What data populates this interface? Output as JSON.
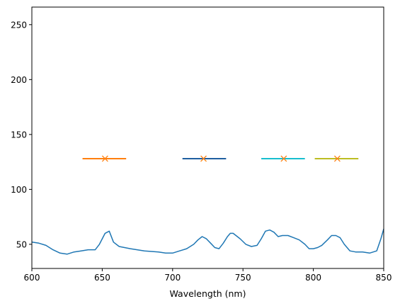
{
  "chart_data": {
    "type": "line",
    "title": "",
    "xlabel": "Wavelength (nm)",
    "ylabel": "",
    "xlim": [
      600,
      850
    ],
    "ylim": [
      28,
      266
    ],
    "grid": false,
    "legend": "none",
    "x_ticks": [
      600,
      650,
      700,
      750,
      800,
      850
    ],
    "y_ticks": [
      50,
      100,
      150,
      200,
      250
    ],
    "spectrum": {
      "color": "#1f77b4",
      "x": [
        600,
        605,
        610,
        615,
        620,
        625,
        630,
        635,
        640,
        645,
        648,
        652,
        655,
        658,
        662,
        670,
        680,
        690,
        695,
        700,
        705,
        710,
        715,
        718,
        721,
        724,
        727,
        730,
        733,
        736,
        739,
        741,
        743,
        745,
        748,
        752,
        756,
        760,
        763,
        766,
        769,
        772,
        775,
        778,
        782,
        786,
        790,
        794,
        797,
        800,
        803,
        806,
        810,
        813,
        816,
        819,
        822,
        826,
        830,
        835,
        840,
        845,
        848,
        850
      ],
      "y": [
        52,
        51,
        49,
        45,
        42,
        41,
        43,
        44,
        45,
        45,
        50,
        60,
        62,
        52,
        48,
        46,
        44,
        43,
        42,
        42,
        44,
        46,
        50,
        54,
        57,
        55,
        51,
        47,
        46,
        51,
        57,
        60,
        60,
        58,
        55,
        50,
        48,
        49,
        55,
        62,
        63,
        61,
        57,
        58,
        58,
        56,
        54,
        50,
        46,
        46,
        47,
        49,
        54,
        58,
        58,
        56,
        50,
        44,
        43,
        43,
        42,
        44,
        55,
        64
      ]
    },
    "markers": [
      {
        "x": 652,
        "y": 128,
        "xmin": 636,
        "xmax": 667,
        "line_color": "#ff7f0e",
        "marker_color": "#ff7f0e"
      },
      {
        "x": 722,
        "y": 128,
        "xmin": 707,
        "xmax": 738,
        "line_color": "#1f5fa0",
        "marker_color": "#ff7f0e"
      },
      {
        "x": 779,
        "y": 128,
        "xmin": 763,
        "xmax": 794,
        "line_color": "#17becf",
        "marker_color": "#ff7f0e"
      },
      {
        "x": 817,
        "y": 128,
        "xmin": 801,
        "xmax": 832,
        "line_color": "#bcbd22",
        "marker_color": "#ff7f0e"
      }
    ]
  }
}
